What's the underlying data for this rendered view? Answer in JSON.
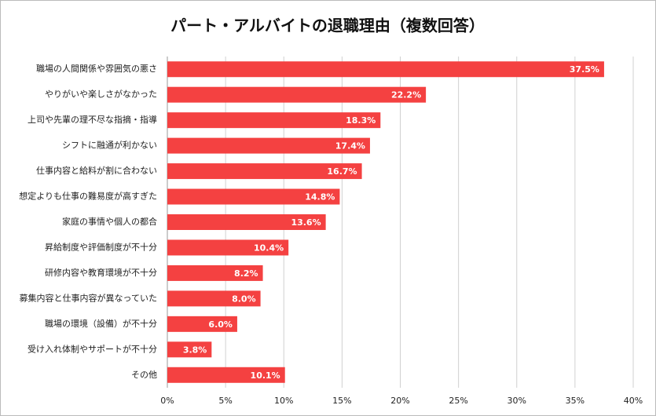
{
  "chart_data": {
    "type": "barh",
    "title": "パート・アルバイトの退職理由（複数回答）",
    "categories": [
      "職場の人間関係や雰囲気の悪さ",
      "やりがいや楽しさがなかった",
      "上司や先輩の理不尽な指摘・指導",
      "シフトに融通が利かない",
      "仕事内容と給料が割に合わない",
      "想定よりも仕事の難易度が高すぎた",
      "家庭の事情や個人の都合",
      "昇給制度や評価制度が不十分",
      "研修内容や教育環境が不十分",
      "募集内容と仕事内容が異なっていた",
      "職場の環境（設備）が不十分",
      "受け入れ体制やサポートが不十分",
      "その他"
    ],
    "values": [
      37.5,
      22.2,
      18.3,
      17.4,
      16.7,
      14.8,
      13.6,
      10.4,
      8.2,
      8.0,
      6.0,
      3.8,
      10.1
    ],
    "value_labels": [
      "37.5%",
      "22.2%",
      "18.3%",
      "17.4%",
      "16.7%",
      "14.8%",
      "13.6%",
      "10.4%",
      "8.2%",
      "8.0%",
      "6.0%",
      "3.8%",
      "10.1%"
    ],
    "color": "#f44141",
    "xlim": [
      0,
      40
    ],
    "xticks": [
      {
        "value": 0,
        "label": "0%"
      },
      {
        "value": 5,
        "label": "5%"
      },
      {
        "value": 10,
        "label": "10%"
      },
      {
        "value": 15,
        "label": "15%"
      },
      {
        "value": 20,
        "label": "20%"
      },
      {
        "value": 25,
        "label": "25%"
      },
      {
        "value": 30,
        "label": "30%"
      },
      {
        "value": 35,
        "label": "35%"
      },
      {
        "value": 40,
        "label": "40%"
      }
    ],
    "grid": true
  }
}
